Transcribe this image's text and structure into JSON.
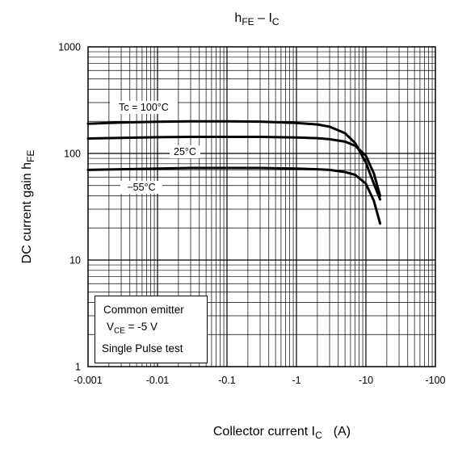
{
  "chart_data": {
    "type": "line",
    "title_main": "h",
    "title_sub": "FE",
    "title_rest": " – I",
    "title_sub2": "C",
    "xlabel_main": "Collector current   I",
    "xlabel_sub": "C",
    "xlabel_unit": "(A)",
    "ylabel_main": "DC current gain   h",
    "ylabel_sub": "FE",
    "x_scale": "log",
    "y_scale": "log",
    "x_ticks": [
      -0.001,
      -0.01,
      -0.1,
      -1,
      -10,
      -100
    ],
    "x_tick_labels": [
      "-0.001",
      "-0.01",
      "-0.1",
      "-1",
      "-10",
      "-100"
    ],
    "y_ticks": [
      1,
      10,
      100,
      1000
    ],
    "y_tick_labels": [
      "1",
      "10",
      "100",
      "1000"
    ],
    "xlim": [
      -0.001,
      -100
    ],
    "ylim": [
      1,
      1000
    ],
    "grid": true,
    "series": [
      {
        "name": "Tc = 100°C",
        "x": [
          -0.001,
          -0.003,
          -0.01,
          -0.03,
          -0.1,
          -0.3,
          -1,
          -2,
          -3,
          -5,
          -7,
          -10,
          -13,
          -16
        ],
        "y": [
          190,
          195,
          198,
          200,
          200,
          199,
          193,
          187,
          178,
          155,
          125,
          82,
          52,
          37
        ]
      },
      {
        "name": "25°C",
        "x": [
          -0.001,
          -0.003,
          -0.01,
          -0.03,
          -0.1,
          -0.3,
          -1,
          -2,
          -3,
          -5,
          -7,
          -10,
          -13,
          -16
        ],
        "y": [
          138,
          140,
          142,
          143,
          143,
          143,
          141,
          139,
          136,
          129,
          118,
          95,
          65,
          40
        ]
      },
      {
        "name": "-55°C",
        "x": [
          -0.001,
          -0.003,
          -0.01,
          -0.03,
          -0.1,
          -0.3,
          -1,
          -2,
          -3,
          -5,
          -7,
          -10,
          -13,
          -16
        ],
        "y": [
          70,
          71,
          72,
          73,
          73,
          73,
          72,
          71,
          70,
          67,
          63,
          52,
          36,
          22
        ]
      }
    ],
    "curve_labels": [
      {
        "text": "Tc = 100°C",
        "series": 0
      },
      {
        "text": "25°C",
        "series": 1
      },
      {
        "text": "−55°C",
        "series": 2
      }
    ],
    "note": {
      "line1": "Common emitter",
      "line2_main": "V",
      "line2_sub": "CE",
      "line2_rest": " = -5 V",
      "line3": "Single Pulse test"
    }
  }
}
